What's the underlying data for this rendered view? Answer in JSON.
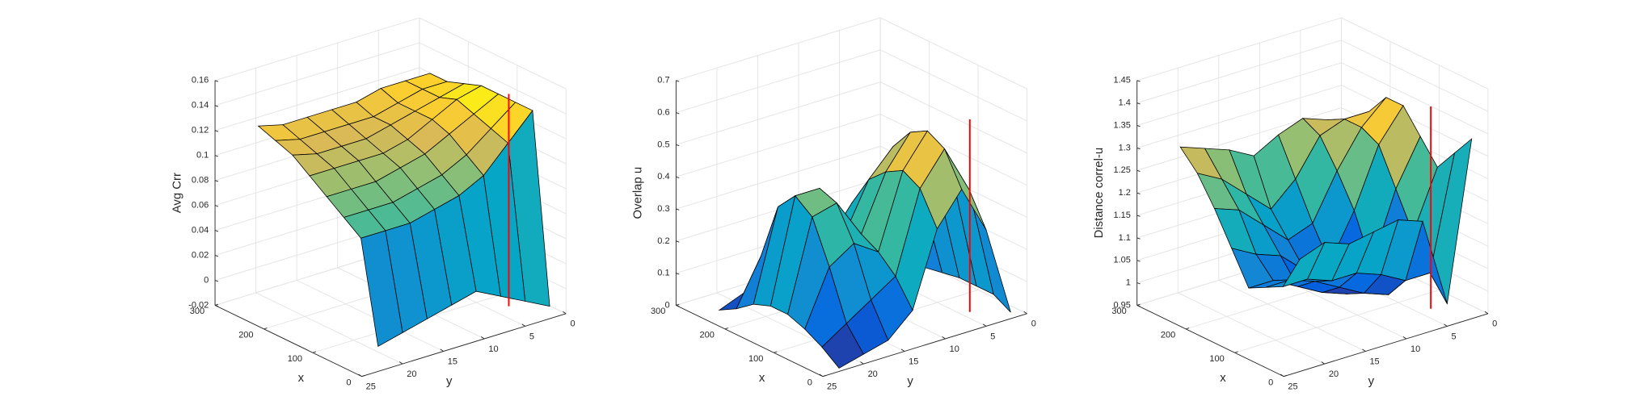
{
  "chart_data": [
    {
      "type": "surface",
      "zlabel": "Avg Crr",
      "xlabel": "x",
      "ylabel": "y",
      "x": [
        0,
        35,
        70,
        105,
        140,
        175,
        210,
        245
      ],
      "y": [
        2,
        5,
        8,
        11,
        14,
        17,
        20,
        23
      ],
      "z": [
        [
          -0.01,
          0.0,
          0.01,
          0.02,
          0.015,
          0.01,
          0.005,
          0.0
        ],
        [
          0.14,
          0.12,
          0.1,
          0.09,
          0.085,
          0.08,
          0.08,
          0.08
        ],
        [
          0.14,
          0.125,
          0.11,
          0.1,
          0.095,
          0.09,
          0.09,
          0.09
        ],
        [
          0.14,
          0.13,
          0.12,
          0.11,
          0.105,
          0.1,
          0.1,
          0.1
        ],
        [
          0.14,
          0.135,
          0.125,
          0.115,
          0.11,
          0.11,
          0.11,
          0.11
        ],
        [
          0.135,
          0.13,
          0.125,
          0.12,
          0.115,
          0.115,
          0.115,
          0.12
        ],
        [
          0.13,
          0.13,
          0.125,
          0.12,
          0.12,
          0.12,
          0.12,
          0.125
        ],
        [
          0.13,
          0.13,
          0.13,
          0.125,
          0.125,
          0.125,
          0.125,
          0.13
        ]
      ],
      "xlim": [
        0,
        300
      ],
      "ylim": [
        0,
        25
      ],
      "zlim": [
        -0.02,
        0.16
      ],
      "xticks": [
        0,
        100,
        200,
        300
      ],
      "yticks": [
        0,
        5,
        10,
        15,
        20,
        25
      ],
      "zticks": [
        -0.02,
        0,
        0.02,
        0.04,
        0.06,
        0.08,
        0.1,
        0.12,
        0.14,
        0.16
      ],
      "grid": true,
      "colormap": "parula",
      "marker": {
        "x": 0,
        "y": 7,
        "z": [
          0,
          0.17
        ],
        "color": "#ff0000"
      }
    },
    {
      "type": "surface",
      "zlabel": "Overlap u",
      "xlabel": "x",
      "ylabel": "y",
      "x": [
        0,
        35,
        70,
        105,
        140,
        175,
        210,
        245
      ],
      "y": [
        2,
        5,
        8,
        11,
        14,
        17,
        20,
        23
      ],
      "z": [
        [
          0.02,
          0.3,
          0.45,
          0.35,
          0.12,
          0.05,
          0.03,
          0.01
        ],
        [
          0.05,
          0.4,
          0.55,
          0.45,
          0.2,
          0.15,
          0.1,
          0.05
        ],
        [
          0.05,
          0.42,
          0.58,
          0.48,
          0.25,
          0.3,
          0.25,
          0.08
        ],
        [
          0.05,
          0.4,
          0.55,
          0.45,
          0.28,
          0.4,
          0.38,
          0.1
        ],
        [
          0.04,
          0.35,
          0.48,
          0.4,
          0.25,
          0.42,
          0.42,
          0.1
        ],
        [
          0.03,
          0.25,
          0.38,
          0.3,
          0.2,
          0.35,
          0.36,
          0.08
        ],
        [
          0.02,
          0.12,
          0.2,
          0.15,
          0.1,
          0.18,
          0.18,
          0.04
        ],
        [
          0.01,
          0.03,
          0.05,
          0.04,
          0.03,
          0.04,
          0.04,
          0.01
        ]
      ],
      "xlim": [
        0,
        300
      ],
      "ylim": [
        0,
        25
      ],
      "zlim": [
        0,
        0.7
      ],
      "xticks": [
        0,
        100,
        200,
        300
      ],
      "yticks": [
        0,
        5,
        10,
        15,
        20,
        25
      ],
      "zticks": [
        0,
        0.1,
        0.2,
        0.3,
        0.4,
        0.5,
        0.6,
        0.7
      ],
      "grid": true,
      "colormap": "parula",
      "marker": {
        "x": 0,
        "y": 7,
        "z": [
          0.06,
          0.66
        ],
        "color": "#ff0000"
      }
    },
    {
      "type": "surface",
      "zlabel": "Distance correl-u",
      "xlabel": "x",
      "ylabel": "y",
      "x": [
        0,
        35,
        70,
        105,
        140,
        175,
        210,
        245
      ],
      "y": [
        2,
        5,
        8,
        11,
        14,
        17,
        20,
        23
      ],
      "z": [
        [
          1.35,
          1.0,
          1.2,
          1.22,
          1.21,
          1.2,
          1.22,
          1.2
        ],
        [
          1.3,
          1.05,
          1.05,
          1.08,
          1.1,
          1.1,
          1.12,
          1.12
        ],
        [
          1.25,
          1.12,
          1.0,
          1.02,
          1.05,
          1.08,
          1.1,
          1.1
        ],
        [
          1.3,
          1.2,
          1.05,
          1.0,
          1.02,
          1.05,
          1.08,
          1.08
        ],
        [
          1.35,
          1.28,
          1.15,
          1.05,
          1.05,
          1.1,
          1.12,
          1.15
        ],
        [
          1.35,
          1.3,
          1.22,
          1.12,
          1.1,
          1.15,
          1.2,
          1.22
        ],
        [
          1.3,
          1.3,
          1.28,
          1.2,
          1.15,
          1.2,
          1.25,
          1.28
        ],
        [
          1.25,
          1.28,
          1.3,
          1.28,
          1.25,
          1.28,
          1.3,
          1.32
        ]
      ],
      "xlim": [
        0,
        300
      ],
      "ylim": [
        0,
        25
      ],
      "zlim": [
        0.95,
        1.45
      ],
      "xticks": [
        0,
        100,
        200,
        300
      ],
      "yticks": [
        0,
        5,
        10,
        15,
        20,
        25
      ],
      "zticks": [
        0.95,
        1,
        1.05,
        1.1,
        1.15,
        1.2,
        1.25,
        1.3,
        1.35,
        1.4,
        1.45
      ],
      "grid": true,
      "colormap": "parula",
      "marker": {
        "x": 0,
        "y": 7,
        "z": [
          1.0,
          1.45
        ],
        "color": "#ff0000"
      }
    }
  ]
}
